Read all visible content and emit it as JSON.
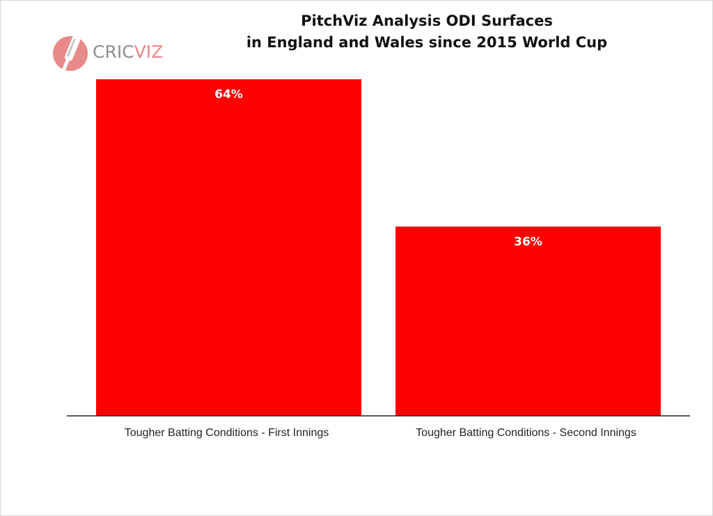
{
  "chart_data": {
    "type": "bar",
    "title_lines": [
      "PitchViz Analysis ODI Surfaces",
      "in England and Wales since 2015 World Cup"
    ],
    "categories": [
      "Tougher Batting Conditions - First Innings",
      "Tougher Batting Conditions - Second Innings"
    ],
    "values": [
      64,
      36
    ],
    "data_labels": [
      "64%",
      "36%"
    ],
    "ylim": [
      0,
      64
    ],
    "bar_color": "#ff0000",
    "grid": false,
    "legend": "none"
  },
  "logo": {
    "text_part1": "CRIC",
    "text_part2": "VIZ",
    "icon": "cricket-bat-ball-icon",
    "color_primary": "#e98989",
    "color_secondary": "#8f8f8f"
  }
}
